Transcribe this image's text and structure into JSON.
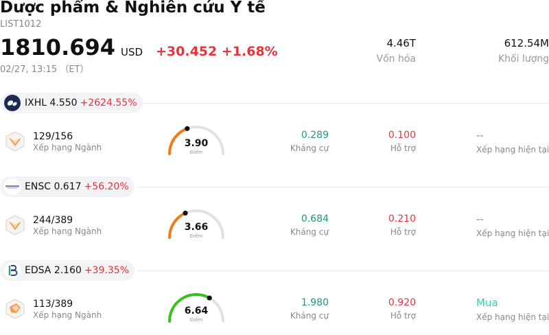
{
  "header": {
    "title": "Dược phẩm & Nghiên cứu Y tế",
    "code": "LIST1012",
    "price": "1810.694",
    "currency": "USD",
    "change": "+30.452",
    "change_pct": "+1.68%",
    "time": "02/27, 13:15 （ET）",
    "market_cap_value": "4.46T",
    "market_cap_label": "Vốn hóa",
    "volume_value": "612.54M",
    "volume_label": "Khối lượng"
  },
  "colors": {
    "up": "#e8323c",
    "resistance": "#1a9c7e",
    "buy": "#3cc7b4",
    "gauge_orange": "#f07d1a",
    "gauge_green": "#36c21a"
  },
  "stocks": [
    {
      "ticker": "IXHL",
      "price": "4.550",
      "change_pct": "+2624.55%",
      "logo_icon": "ixhl-logo-icon",
      "rank": "129/156",
      "rank_label": "Xếp hạng Ngành",
      "score": "3.90",
      "score_label": "Điểm",
      "score_fraction": 0.39,
      "resistance": "0.289",
      "resistance_label": "Kháng cự",
      "support": "0.100",
      "support_label": "Hỗ trợ",
      "rating": "--",
      "rating_label": "Xếp hạng hiện tại"
    },
    {
      "ticker": "ENSC",
      "price": "0.617",
      "change_pct": "+56.20%",
      "logo_icon": "ensc-logo-icon",
      "rank": "244/389",
      "rank_label": "Xếp hạng Ngành",
      "score": "3.66",
      "score_label": "Điểm",
      "score_fraction": 0.366,
      "resistance": "0.684",
      "resistance_label": "Kháng cự",
      "support": "0.210",
      "support_label": "Hỗ trợ",
      "rating": "--",
      "rating_label": "Xếp hạng hiện tại"
    },
    {
      "ticker": "EDSA",
      "price": "2.160",
      "change_pct": "+39.35%",
      "logo_icon": "edsa-logo-icon",
      "rank": "113/389",
      "rank_label": "Xếp hạng Ngành",
      "score": "6.64",
      "score_label": "Điểm",
      "score_fraction": 0.664,
      "resistance": "1.980",
      "resistance_label": "Kháng cự",
      "support": "0.920",
      "support_label": "Hỗ trợ",
      "rating": "Mua",
      "rating_label": "Xếp hạng hiện tại"
    }
  ]
}
